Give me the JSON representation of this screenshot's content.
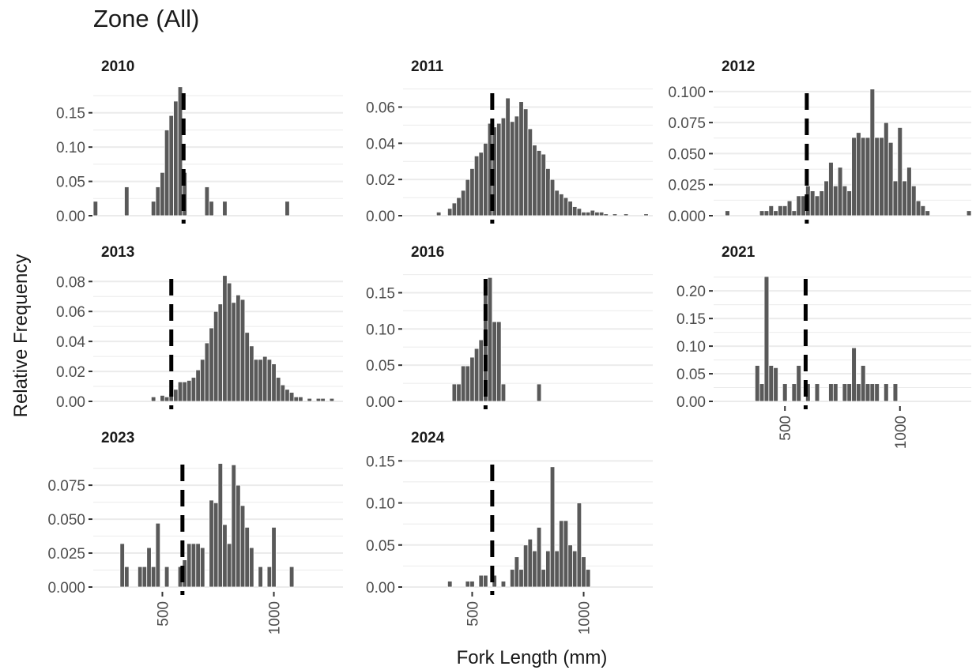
{
  "title": "Zone (All)",
  "xlabel": "Fork Length (mm)",
  "ylabel": "Relative Frequency",
  "colors": {
    "bar": "#595959",
    "bar_edge": "#ffffff",
    "grid": "#ebebeb",
    "marker": "#000000",
    "text": "#4d4d4d",
    "title": "#1a1a1a"
  },
  "chart_data": {
    "type": "bar",
    "layout": "facet-grid",
    "shared_x": true,
    "xlim": [
      190,
      1310
    ],
    "x_ticks": [
      500,
      1000
    ],
    "x_tick_labels": [
      "500",
      "1000"
    ],
    "bin_width": 20,
    "panels": [
      {
        "label": "2010",
        "marker_x": 595,
        "ylim": [
          0,
          0.19
        ],
        "y_ticks": [
          0,
          0.05,
          0.1,
          0.15
        ],
        "y_tick_labels": [
          "0.00",
          "0.05",
          "0.10",
          "0.15"
        ],
        "bars": [
          {
            "x": 200,
            "y": 0.021
          },
          {
            "x": 340,
            "y": 0.042
          },
          {
            "x": 460,
            "y": 0.021
          },
          {
            "x": 480,
            "y": 0.042
          },
          {
            "x": 500,
            "y": 0.063
          },
          {
            "x": 520,
            "y": 0.125
          },
          {
            "x": 540,
            "y": 0.146
          },
          {
            "x": 560,
            "y": 0.167
          },
          {
            "x": 580,
            "y": 0.188
          },
          {
            "x": 600,
            "y": 0.063
          },
          {
            "x": 700,
            "y": 0.042
          },
          {
            "x": 720,
            "y": 0.021
          },
          {
            "x": 780,
            "y": 0.021
          },
          {
            "x": 1060,
            "y": 0.021
          }
        ]
      },
      {
        "label": "2011",
        "marker_x": 590,
        "ylim": [
          0,
          0.072
        ],
        "y_ticks": [
          0,
          0.02,
          0.04,
          0.06
        ],
        "y_tick_labels": [
          "0.00",
          "0.02",
          "0.04",
          "0.06"
        ],
        "bars": [
          {
            "x": 350,
            "y": 0.002
          },
          {
            "x": 400,
            "y": 0.004
          },
          {
            "x": 420,
            "y": 0.007
          },
          {
            "x": 440,
            "y": 0.01
          },
          {
            "x": 460,
            "y": 0.014
          },
          {
            "x": 480,
            "y": 0.02
          },
          {
            "x": 500,
            "y": 0.026
          },
          {
            "x": 520,
            "y": 0.033
          },
          {
            "x": 540,
            "y": 0.035
          },
          {
            "x": 560,
            "y": 0.04
          },
          {
            "x": 580,
            "y": 0.051
          },
          {
            "x": 600,
            "y": 0.049
          },
          {
            "x": 620,
            "y": 0.051
          },
          {
            "x": 640,
            "y": 0.054
          },
          {
            "x": 660,
            "y": 0.065
          },
          {
            "x": 680,
            "y": 0.052
          },
          {
            "x": 700,
            "y": 0.055
          },
          {
            "x": 720,
            "y": 0.063
          },
          {
            "x": 740,
            "y": 0.059
          },
          {
            "x": 760,
            "y": 0.048
          },
          {
            "x": 780,
            "y": 0.039
          },
          {
            "x": 800,
            "y": 0.036
          },
          {
            "x": 820,
            "y": 0.034
          },
          {
            "x": 840,
            "y": 0.026
          },
          {
            "x": 860,
            "y": 0.02
          },
          {
            "x": 880,
            "y": 0.014
          },
          {
            "x": 900,
            "y": 0.012
          },
          {
            "x": 920,
            "y": 0.01
          },
          {
            "x": 940,
            "y": 0.008
          },
          {
            "x": 960,
            "y": 0.005
          },
          {
            "x": 980,
            "y": 0.004
          },
          {
            "x": 1000,
            "y": 0.002
          },
          {
            "x": 1020,
            "y": 0.002
          },
          {
            "x": 1040,
            "y": 0.003
          },
          {
            "x": 1060,
            "y": 0.002
          },
          {
            "x": 1080,
            "y": 0.002
          },
          {
            "x": 1100,
            "y": 0.001
          },
          {
            "x": 1140,
            "y": 0.001
          },
          {
            "x": 1190,
            "y": 0.001
          },
          {
            "x": 1280,
            "y": 0.001
          }
        ]
      },
      {
        "label": "2012",
        "marker_x": 595,
        "ylim": [
          0,
          0.105
        ],
        "y_ticks": [
          0,
          0.025,
          0.05,
          0.075,
          0.1
        ],
        "y_tick_labels": [
          "0.000",
          "0.025",
          "0.050",
          "0.075",
          "0.100"
        ],
        "bars": [
          {
            "x": 250,
            "y": 0.004
          },
          {
            "x": 400,
            "y": 0.004
          },
          {
            "x": 420,
            "y": 0.004
          },
          {
            "x": 440,
            "y": 0.008
          },
          {
            "x": 460,
            "y": 0.004
          },
          {
            "x": 480,
            "y": 0.008
          },
          {
            "x": 500,
            "y": 0.008
          },
          {
            "x": 520,
            "y": 0.012
          },
          {
            "x": 540,
            "y": 0.004
          },
          {
            "x": 560,
            "y": 0.016
          },
          {
            "x": 580,
            "y": 0.016
          },
          {
            "x": 600,
            "y": 0.024
          },
          {
            "x": 620,
            "y": 0.02
          },
          {
            "x": 640,
            "y": 0.016
          },
          {
            "x": 660,
            "y": 0.02
          },
          {
            "x": 680,
            "y": 0.028
          },
          {
            "x": 700,
            "y": 0.043
          },
          {
            "x": 720,
            "y": 0.024
          },
          {
            "x": 740,
            "y": 0.039
          },
          {
            "x": 760,
            "y": 0.024
          },
          {
            "x": 780,
            "y": 0.02
          },
          {
            "x": 800,
            "y": 0.063
          },
          {
            "x": 820,
            "y": 0.067
          },
          {
            "x": 840,
            "y": 0.063
          },
          {
            "x": 860,
            "y": 0.063
          },
          {
            "x": 880,
            "y": 0.102
          },
          {
            "x": 900,
            "y": 0.063
          },
          {
            "x": 920,
            "y": 0.063
          },
          {
            "x": 940,
            "y": 0.075
          },
          {
            "x": 960,
            "y": 0.059
          },
          {
            "x": 980,
            "y": 0.028
          },
          {
            "x": 1000,
            "y": 0.071
          },
          {
            "x": 1020,
            "y": 0.028
          },
          {
            "x": 1040,
            "y": 0.039
          },
          {
            "x": 1060,
            "y": 0.024
          },
          {
            "x": 1080,
            "y": 0.012
          },
          {
            "x": 1100,
            "y": 0.008
          },
          {
            "x": 1120,
            "y": 0.004
          },
          {
            "x": 1300,
            "y": 0.004
          }
        ]
      },
      {
        "label": "2013",
        "marker_x": 540,
        "ylim": [
          0,
          0.087
        ],
        "y_ticks": [
          0,
          0.02,
          0.04,
          0.06,
          0.08
        ],
        "y_tick_labels": [
          "0.00",
          "0.02",
          "0.04",
          "0.06",
          "0.08"
        ],
        "bars": [
          {
            "x": 460,
            "y": 0.003
          },
          {
            "x": 500,
            "y": 0.004
          },
          {
            "x": 520,
            "y": 0.003
          },
          {
            "x": 540,
            "y": 0.005
          },
          {
            "x": 560,
            "y": 0.008
          },
          {
            "x": 580,
            "y": 0.013
          },
          {
            "x": 600,
            "y": 0.013
          },
          {
            "x": 620,
            "y": 0.014
          },
          {
            "x": 640,
            "y": 0.016
          },
          {
            "x": 660,
            "y": 0.021
          },
          {
            "x": 680,
            "y": 0.028
          },
          {
            "x": 700,
            "y": 0.039
          },
          {
            "x": 720,
            "y": 0.049
          },
          {
            "x": 740,
            "y": 0.06
          },
          {
            "x": 760,
            "y": 0.065
          },
          {
            "x": 780,
            "y": 0.084
          },
          {
            "x": 800,
            "y": 0.079
          },
          {
            "x": 820,
            "y": 0.066
          },
          {
            "x": 840,
            "y": 0.071
          },
          {
            "x": 860,
            "y": 0.068
          },
          {
            "x": 880,
            "y": 0.046
          },
          {
            "x": 900,
            "y": 0.037
          },
          {
            "x": 920,
            "y": 0.028
          },
          {
            "x": 940,
            "y": 0.028
          },
          {
            "x": 960,
            "y": 0.03
          },
          {
            "x": 980,
            "y": 0.028
          },
          {
            "x": 1000,
            "y": 0.025
          },
          {
            "x": 1020,
            "y": 0.016
          },
          {
            "x": 1040,
            "y": 0.011
          },
          {
            "x": 1060,
            "y": 0.008
          },
          {
            "x": 1080,
            "y": 0.006
          },
          {
            "x": 1100,
            "y": 0.003
          },
          {
            "x": 1120,
            "y": 0.003
          },
          {
            "x": 1160,
            "y": 0.002
          },
          {
            "x": 1200,
            "y": 0.002
          },
          {
            "x": 1220,
            "y": 0.002
          },
          {
            "x": 1260,
            "y": 0.002
          }
        ]
      },
      {
        "label": "2016",
        "marker_x": 560,
        "ylim": [
          0,
          0.18
        ],
        "y_ticks": [
          0,
          0.05,
          0.1,
          0.15
        ],
        "y_tick_labels": [
          "0.00",
          "0.05",
          "0.10",
          "0.15"
        ],
        "bars": [
          {
            "x": 420,
            "y": 0.024
          },
          {
            "x": 440,
            "y": 0.024
          },
          {
            "x": 460,
            "y": 0.049
          },
          {
            "x": 480,
            "y": 0.049
          },
          {
            "x": 500,
            "y": 0.061
          },
          {
            "x": 520,
            "y": 0.073
          },
          {
            "x": 540,
            "y": 0.085
          },
          {
            "x": 560,
            "y": 0.159
          },
          {
            "x": 580,
            "y": 0.171
          },
          {
            "x": 600,
            "y": 0.11
          },
          {
            "x": 620,
            "y": 0.11
          },
          {
            "x": 640,
            "y": 0.024
          },
          {
            "x": 800,
            "y": 0.024
          }
        ]
      },
      {
        "label": "2021",
        "marker_x": 590,
        "ylim": [
          0,
          0.236
        ],
        "y_ticks": [
          0,
          0.05,
          0.1,
          0.15,
          0.2
        ],
        "y_tick_labels": [
          "0.00",
          "0.05",
          "0.10",
          "0.15",
          "0.20"
        ],
        "bars": [
          {
            "x": 380,
            "y": 0.065
          },
          {
            "x": 400,
            "y": 0.032
          },
          {
            "x": 420,
            "y": 0.226
          },
          {
            "x": 440,
            "y": 0.065
          },
          {
            "x": 460,
            "y": 0.061
          },
          {
            "x": 500,
            "y": 0.032
          },
          {
            "x": 540,
            "y": 0.032
          },
          {
            "x": 560,
            "y": 0.065
          },
          {
            "x": 600,
            "y": 0.032
          },
          {
            "x": 640,
            "y": 0.032
          },
          {
            "x": 700,
            "y": 0.032
          },
          {
            "x": 720,
            "y": 0.032
          },
          {
            "x": 760,
            "y": 0.032
          },
          {
            "x": 780,
            "y": 0.032
          },
          {
            "x": 800,
            "y": 0.097
          },
          {
            "x": 820,
            "y": 0.032
          },
          {
            "x": 840,
            "y": 0.065
          },
          {
            "x": 860,
            "y": 0.032
          },
          {
            "x": 880,
            "y": 0.032
          },
          {
            "x": 900,
            "y": 0.032
          },
          {
            "x": 940,
            "y": 0.032
          },
          {
            "x": 980,
            "y": 0.032
          }
        ]
      },
      {
        "label": "2023",
        "marker_x": 590,
        "ylim": [
          0,
          0.096
        ],
        "y_ticks": [
          0,
          0.025,
          0.05,
          0.075
        ],
        "y_tick_labels": [
          "0.000",
          "0.025",
          "0.050",
          "0.075"
        ],
        "bars": [
          {
            "x": 320,
            "y": 0.032
          },
          {
            "x": 340,
            "y": 0.015
          },
          {
            "x": 400,
            "y": 0.015
          },
          {
            "x": 420,
            "y": 0.015
          },
          {
            "x": 440,
            "y": 0.029
          },
          {
            "x": 460,
            "y": 0.015
          },
          {
            "x": 480,
            "y": 0.047
          },
          {
            "x": 520,
            "y": 0.015
          },
          {
            "x": 580,
            "y": 0.015
          },
          {
            "x": 600,
            "y": 0.02
          },
          {
            "x": 620,
            "y": 0.032
          },
          {
            "x": 640,
            "y": 0.032
          },
          {
            "x": 660,
            "y": 0.032
          },
          {
            "x": 680,
            "y": 0.029
          },
          {
            "x": 720,
            "y": 0.064
          },
          {
            "x": 740,
            "y": 0.062
          },
          {
            "x": 760,
            "y": 0.091
          },
          {
            "x": 780,
            "y": 0.046
          },
          {
            "x": 800,
            "y": 0.032
          },
          {
            "x": 820,
            "y": 0.09
          },
          {
            "x": 840,
            "y": 0.075
          },
          {
            "x": 860,
            "y": 0.06
          },
          {
            "x": 880,
            "y": 0.044
          },
          {
            "x": 900,
            "y": 0.029
          },
          {
            "x": 940,
            "y": 0.015
          },
          {
            "x": 980,
            "y": 0.015
          },
          {
            "x": 1000,
            "y": 0.044
          },
          {
            "x": 1080,
            "y": 0.015
          }
        ]
      },
      {
        "label": "2024",
        "marker_x": 590,
        "ylim": [
          0,
          0.155
        ],
        "y_ticks": [
          0,
          0.05,
          0.1,
          0.15
        ],
        "y_tick_labels": [
          "0.00",
          "0.05",
          "0.10",
          "0.15"
        ],
        "bars": [
          {
            "x": 400,
            "y": 0.007
          },
          {
            "x": 480,
            "y": 0.007
          },
          {
            "x": 500,
            "y": 0.007
          },
          {
            "x": 540,
            "y": 0.014
          },
          {
            "x": 560,
            "y": 0.014
          },
          {
            "x": 600,
            "y": 0.014
          },
          {
            "x": 640,
            "y": 0.007
          },
          {
            "x": 680,
            "y": 0.021
          },
          {
            "x": 700,
            "y": 0.036
          },
          {
            "x": 720,
            "y": 0.021
          },
          {
            "x": 740,
            "y": 0.05
          },
          {
            "x": 760,
            "y": 0.057
          },
          {
            "x": 780,
            "y": 0.043
          },
          {
            "x": 800,
            "y": 0.071
          },
          {
            "x": 820,
            "y": 0.021
          },
          {
            "x": 840,
            "y": 0.043
          },
          {
            "x": 860,
            "y": 0.143
          },
          {
            "x": 880,
            "y": 0.043
          },
          {
            "x": 900,
            "y": 0.079
          },
          {
            "x": 920,
            "y": 0.079
          },
          {
            "x": 940,
            "y": 0.05
          },
          {
            "x": 960,
            "y": 0.043
          },
          {
            "x": 980,
            "y": 0.1
          },
          {
            "x": 1000,
            "y": 0.036
          },
          {
            "x": 1020,
            "y": 0.021
          }
        ]
      }
    ]
  }
}
